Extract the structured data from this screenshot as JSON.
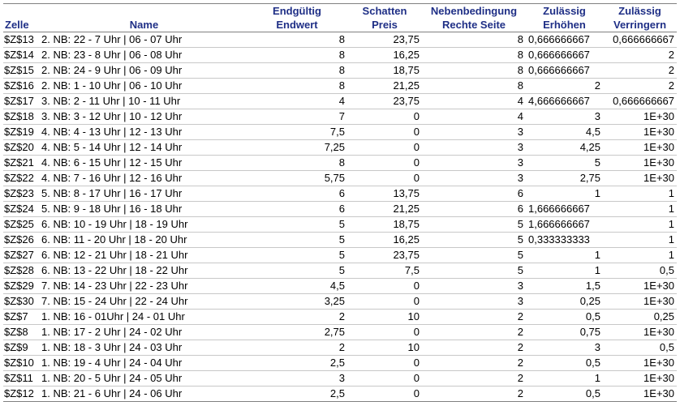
{
  "headers": {
    "cell": [
      "",
      "Zelle"
    ],
    "name": [
      "",
      "Name"
    ],
    "final": [
      "Endgültig",
      "Endwert"
    ],
    "shadow": [
      "Schatten",
      "Preis"
    ],
    "constraint": [
      "Nebenbedingung",
      "Rechte Seite"
    ],
    "increase": [
      "Zulässig",
      "Erhöhen"
    ],
    "decrease": [
      "Zulässig",
      "Verringern"
    ]
  },
  "rows": [
    {
      "cell": "$Z$13",
      "name": "2. NB: 22 - 7 Uhr  | 06 - 07 Uhr",
      "final": "8",
      "shadow": "23,75",
      "rhs": "8",
      "inc": "0,666666667",
      "dec": "0,666666667"
    },
    {
      "cell": "$Z$14",
      "name": "2. NB: 23 - 8 Uhr  | 06 - 08 Uhr",
      "final": "8",
      "shadow": "16,25",
      "rhs": "8",
      "inc": "0,666666667",
      "dec": "2"
    },
    {
      "cell": "$Z$15",
      "name": "2. NB: 24 - 9 Uhr  | 06 - 09 Uhr",
      "final": "8",
      "shadow": "18,75",
      "rhs": "8",
      "inc": "0,666666667",
      "dec": "2"
    },
    {
      "cell": "$Z$16",
      "name": "2. NB: 1 - 10 Uhr  | 06 - 10 Uhr",
      "final": "8",
      "shadow": "21,25",
      "rhs": "8",
      "inc": "2",
      "dec": "2"
    },
    {
      "cell": "$Z$17",
      "name": "3. NB: 2 - 11 Uhr  | 10 - 11 Uhr",
      "final": "4",
      "shadow": "23,75",
      "rhs": "4",
      "inc": "4,666666667",
      "dec": "0,666666667"
    },
    {
      "cell": "$Z$18",
      "name": "3. NB: 3 - 12 Uhr  | 10 - 12 Uhr",
      "final": "7",
      "shadow": "0",
      "rhs": "4",
      "inc": "3",
      "dec": "1E+30"
    },
    {
      "cell": "$Z$19",
      "name": "4. NB: 4 - 13 Uhr  | 12 - 13 Uhr",
      "final": "7,5",
      "shadow": "0",
      "rhs": "3",
      "inc": "4,5",
      "dec": "1E+30"
    },
    {
      "cell": "$Z$20",
      "name": "4. NB: 5 - 14 Uhr  | 12 - 14 Uhr",
      "final": "7,25",
      "shadow": "0",
      "rhs": "3",
      "inc": "4,25",
      "dec": "1E+30"
    },
    {
      "cell": "$Z$21",
      "name": "4. NB: 6 - 15 Uhr  | 12 - 15 Uhr",
      "final": "8",
      "shadow": "0",
      "rhs": "3",
      "inc": "5",
      "dec": "1E+30"
    },
    {
      "cell": "$Z$22",
      "name": "4. NB: 7 - 16 Uhr  | 12 - 16 Uhr",
      "final": "5,75",
      "shadow": "0",
      "rhs": "3",
      "inc": "2,75",
      "dec": "1E+30"
    },
    {
      "cell": "$Z$23",
      "name": "5. NB: 8 - 17 Uhr  | 16 - 17 Uhr",
      "final": "6",
      "shadow": "13,75",
      "rhs": "6",
      "inc": "1",
      "dec": "1"
    },
    {
      "cell": "$Z$24",
      "name": "5. NB: 9 - 18 Uhr  | 16 - 18 Uhr",
      "final": "6",
      "shadow": "21,25",
      "rhs": "6",
      "inc": "1,666666667",
      "dec": "1"
    },
    {
      "cell": "$Z$25",
      "name": "6. NB: 10 - 19 Uhr  | 18 - 19 Uhr",
      "final": "5",
      "shadow": "18,75",
      "rhs": "5",
      "inc": "1,666666667",
      "dec": "1"
    },
    {
      "cell": "$Z$26",
      "name": "6. NB: 11 - 20 Uhr  | 18 - 20 Uhr",
      "final": "5",
      "shadow": "16,25",
      "rhs": "5",
      "inc": "0,333333333",
      "dec": "1"
    },
    {
      "cell": "$Z$27",
      "name": "6. NB: 12 - 21 Uhr  | 18 - 21 Uhr",
      "final": "5",
      "shadow": "23,75",
      "rhs": "5",
      "inc": "1",
      "dec": "1"
    },
    {
      "cell": "$Z$28",
      "name": "6. NB: 13 - 22 Uhr  | 18 - 22 Uhr",
      "final": "5",
      "shadow": "7,5",
      "rhs": "5",
      "inc": "1",
      "dec": "0,5"
    },
    {
      "cell": "$Z$29",
      "name": "7. NB: 14 - 23 Uhr  | 22 - 23 Uhr",
      "final": "4,5",
      "shadow": "0",
      "rhs": "3",
      "inc": "1,5",
      "dec": "1E+30"
    },
    {
      "cell": "$Z$30",
      "name": "7. NB: 15 - 24 Uhr  | 22 - 24 Uhr",
      "final": "3,25",
      "shadow": "0",
      "rhs": "3",
      "inc": "0,25",
      "dec": "1E+30"
    },
    {
      "cell": "$Z$7",
      "name": "1. NB: 16 - 01Uhr  | 24 - 01 Uhr",
      "final": "2",
      "shadow": "10",
      "rhs": "2",
      "inc": "0,5",
      "dec": "0,25"
    },
    {
      "cell": "$Z$8",
      "name": "1. NB: 17 - 2 Uhr  | 24 - 02 Uhr",
      "final": "2,75",
      "shadow": "0",
      "rhs": "2",
      "inc": "0,75",
      "dec": "1E+30"
    },
    {
      "cell": "$Z$9",
      "name": "1. NB: 18 - 3 Uhr  | 24 - 03 Uhr",
      "final": "2",
      "shadow": "10",
      "rhs": "2",
      "inc": "3",
      "dec": "0,5"
    },
    {
      "cell": "$Z$10",
      "name": "1. NB: 19 - 4 Uhr  | 24 - 04 Uhr",
      "final": "2,5",
      "shadow": "0",
      "rhs": "2",
      "inc": "0,5",
      "dec": "1E+30"
    },
    {
      "cell": "$Z$11",
      "name": "1. NB: 20 - 5 Uhr  | 24 - 05 Uhr",
      "final": "3",
      "shadow": "0",
      "rhs": "2",
      "inc": "1",
      "dec": "1E+30"
    },
    {
      "cell": "$Z$12",
      "name": "1. NB: 21 - 6 Uhr  | 24 - 06 Uhr",
      "final": "2,5",
      "shadow": "0",
      "rhs": "2",
      "inc": "0,5",
      "dec": "1E+30"
    }
  ]
}
